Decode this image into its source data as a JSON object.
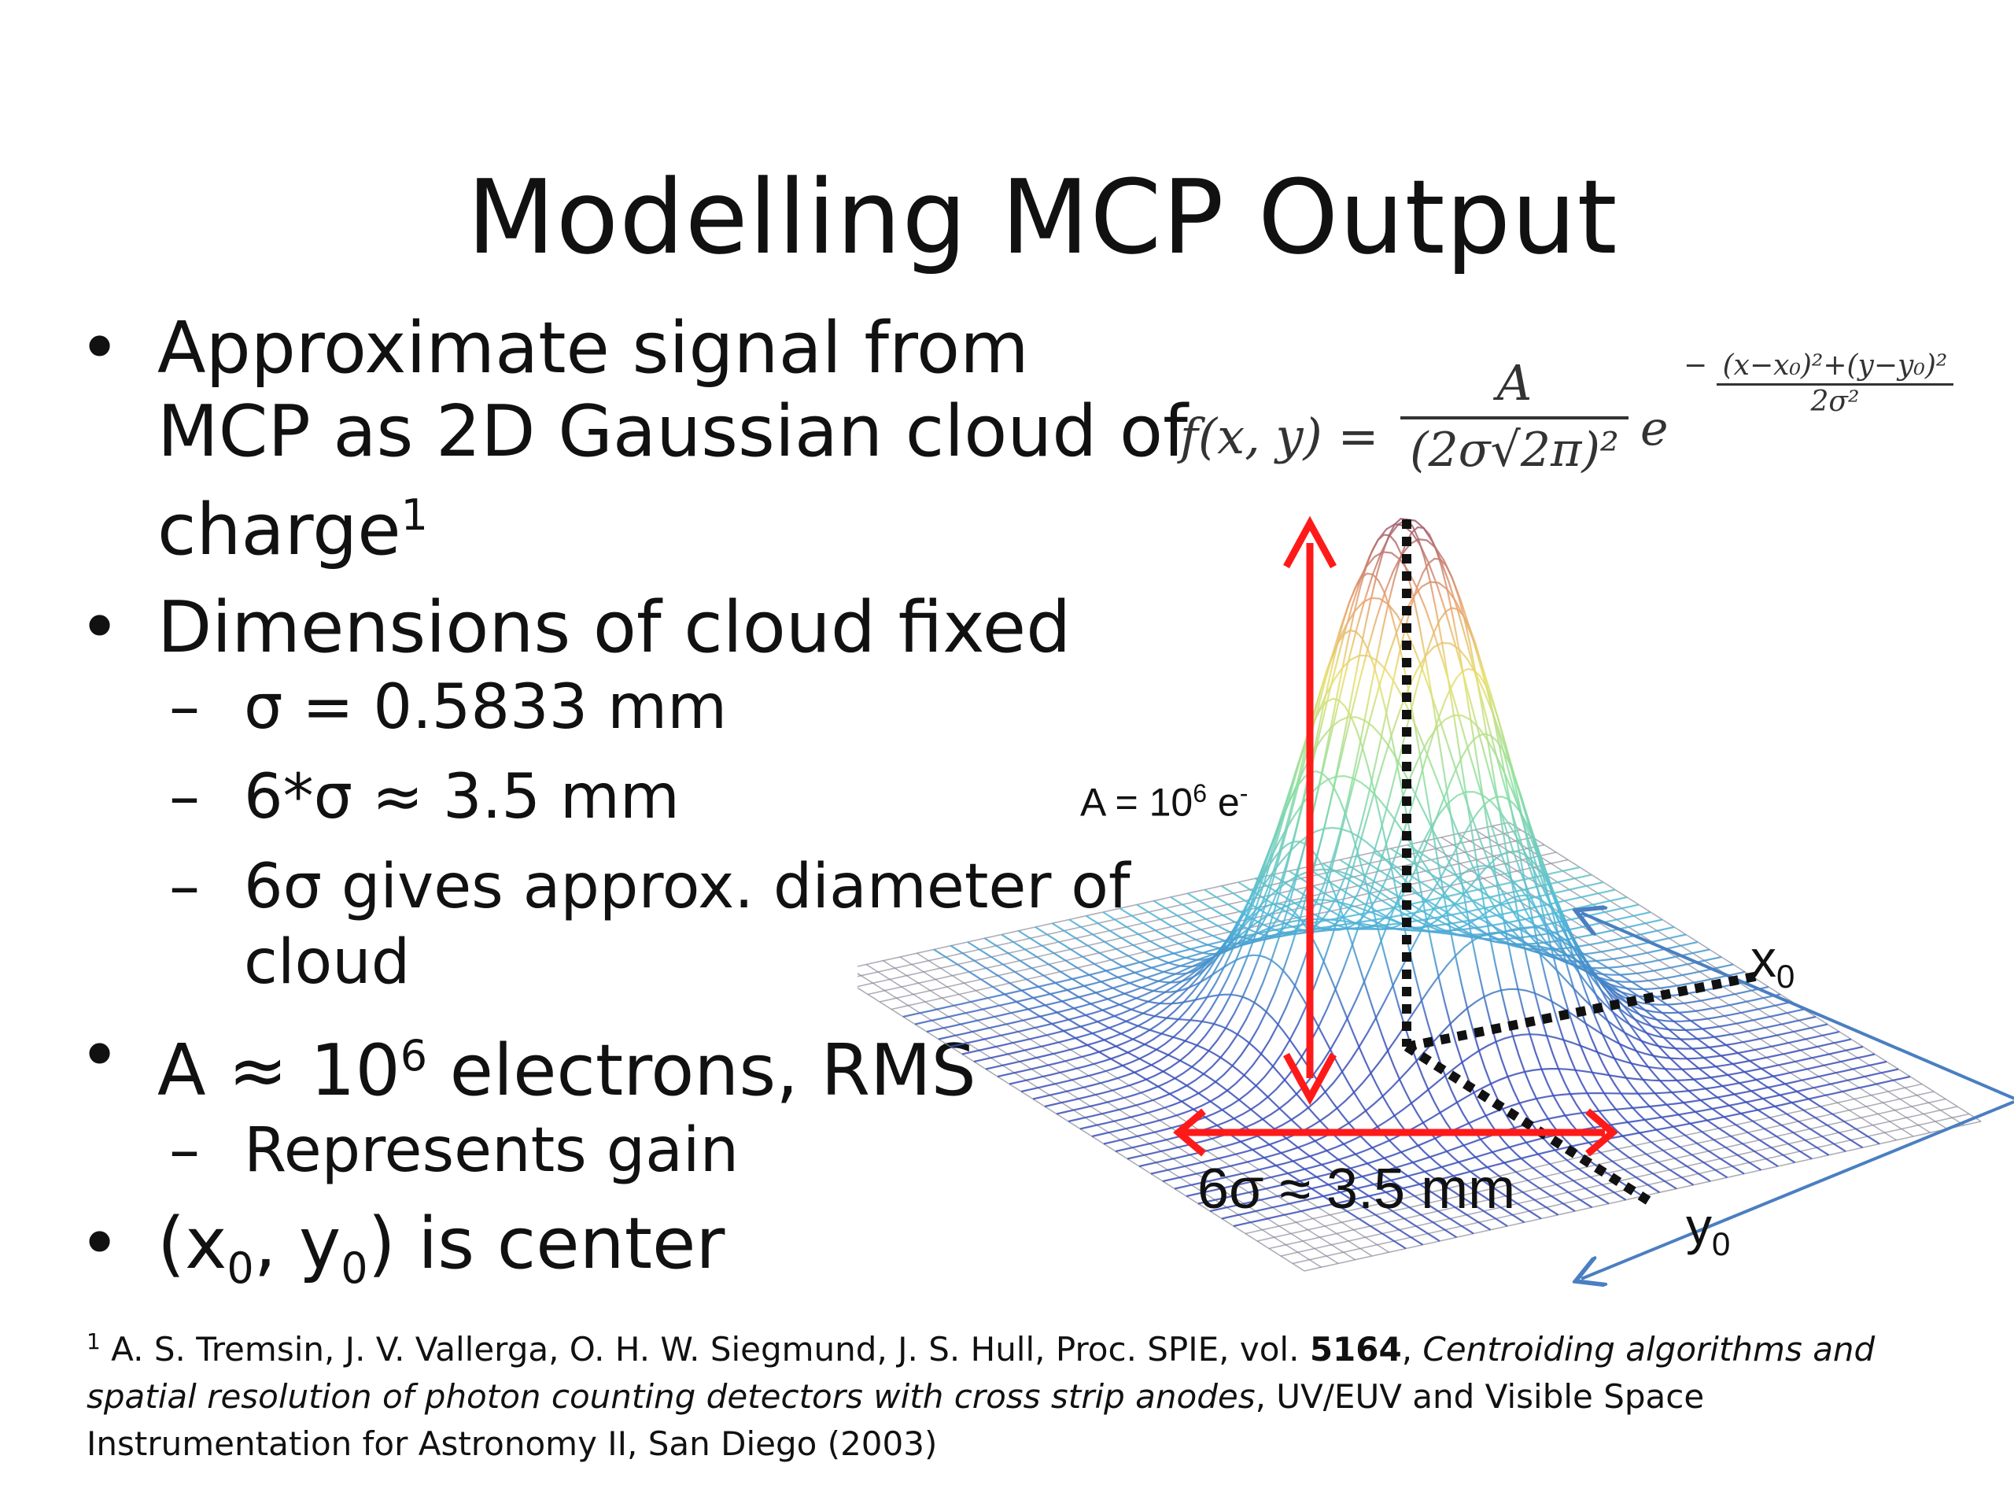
{
  "title": "Modelling MCP Output",
  "bullets": {
    "b1": "Approximate signal from MCP as 2D Gaussian cloud of charge",
    "b1_sup": "1",
    "b2": "Dimensions of cloud fixed",
    "b2_subs": [
      "σ = 0.5833 mm",
      "6*σ ≈ 3.5 mm",
      "6σ gives approx. diameter of cloud"
    ],
    "b3_pre": "A ≈ 10",
    "b3_sup": "6",
    "b3_post": " electrons, RMS",
    "b3_subs": [
      "Represents gain"
    ],
    "b4_a": "(x",
    "b4_sub1": "0",
    "b4_b": ", y",
    "b4_sub2": "0",
    "b4_c": ") is center",
    "dash": "–",
    "dot": "•"
  },
  "formula": {
    "lhs": "f(x, y) =",
    "numerator": "A",
    "denominator": "(2σ√2π)²",
    "base": "e",
    "exp_sign": "−",
    "exp_num": "(x−x₀)²+(y−y₀)²",
    "exp_den": "2σ²"
  },
  "figure": {
    "amp_label_pre": "A = 10",
    "amp_label_sup": "6",
    "amp_label_post": " e",
    "amp_label_sup2": "-",
    "width_label": "6σ ≈ 3.5 mm",
    "x0_label": "x",
    "x0_sub": "0",
    "y0_label": "y",
    "y0_sub": "0",
    "colors": {
      "arrow": "#ff1a1a",
      "axis": "#4a7fc1",
      "mesh": "#8a8a9a"
    }
  },
  "footnote": {
    "sup": "1",
    "authors": " A. S. Tremsin, J. V. Vallerga, O. H. W. Siegmund, J. S. Hull, Proc. SPIE, vol. ",
    "vol": "5164",
    "sep": ", ",
    "paper": "Centroiding algorithms and spatial resolution of photon counting detectors with cross strip anodes",
    "rest": ", UV/EUV and Visible Space Instrumentation for Astronomy II, San Diego (2003)"
  }
}
